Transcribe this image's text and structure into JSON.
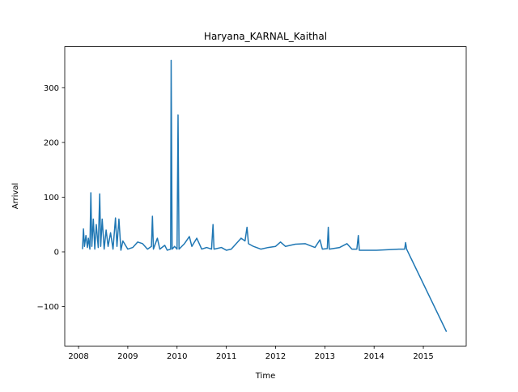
{
  "chart_data": {
    "type": "line",
    "title": "Haryana_KARNAL_Kaithal",
    "xlabel": "Time",
    "ylabel": "Arrival",
    "color": "#1f77b4",
    "x": [
      2008.08,
      2008.1,
      2008.12,
      2008.15,
      2008.18,
      2008.2,
      2008.23,
      2008.25,
      2008.27,
      2008.3,
      2008.33,
      2008.36,
      2008.4,
      2008.43,
      2008.45,
      2008.48,
      2008.52,
      2008.56,
      2008.6,
      2008.65,
      2008.7,
      2008.75,
      2008.78,
      2008.82,
      2008.86,
      2008.9,
      2009.0,
      2009.1,
      2009.2,
      2009.3,
      2009.4,
      2009.48,
      2009.5,
      2009.52,
      2009.6,
      2009.65,
      2009.75,
      2009.8,
      2009.87,
      2009.88,
      2009.9,
      2009.95,
      2010.0,
      2010.02,
      2010.04,
      2010.15,
      2010.25,
      2010.3,
      2010.4,
      2010.5,
      2010.6,
      2010.7,
      2010.73,
      2010.75,
      2010.9,
      2011.0,
      2011.1,
      2011.2,
      2011.3,
      2011.38,
      2011.42,
      2011.45,
      2011.55,
      2011.7,
      2011.85,
      2012.0,
      2012.1,
      2012.2,
      2012.4,
      2012.6,
      2012.8,
      2012.9,
      2012.95,
      2013.05,
      2013.07,
      2013.09,
      2013.3,
      2013.45,
      2013.55,
      2013.65,
      2013.68,
      2013.7,
      2013.9,
      2014.05,
      2014.3,
      2014.5,
      2014.62,
      2014.64,
      2014.66,
      2015.47
    ],
    "values": [
      5,
      42,
      10,
      30,
      8,
      25,
      5,
      108,
      10,
      60,
      5,
      50,
      8,
      106,
      10,
      60,
      5,
      40,
      10,
      35,
      5,
      62,
      10,
      60,
      3,
      20,
      5,
      8,
      18,
      15,
      5,
      10,
      65,
      5,
      25,
      5,
      12,
      3,
      5,
      350,
      5,
      10,
      5,
      250,
      5,
      15,
      28,
      10,
      25,
      5,
      8,
      5,
      50,
      5,
      8,
      3,
      5,
      15,
      25,
      20,
      45,
      15,
      10,
      5,
      8,
      10,
      18,
      10,
      14,
      15,
      8,
      22,
      5,
      6,
      45,
      5,
      8,
      15,
      5,
      5,
      30,
      3,
      3,
      3,
      4,
      5,
      5,
      17,
      5,
      -146
    ],
    "xlim": [
      2007.72,
      2015.87
    ],
    "xticks": [
      2008,
      2009,
      2010,
      2011,
      2012,
      2013,
      2014,
      2015
    ],
    "ylim": [
      -172,
      375
    ],
    "yticks": [
      {
        "value": -100,
        "label": "−100"
      },
      0,
      100,
      200,
      300
    ]
  }
}
